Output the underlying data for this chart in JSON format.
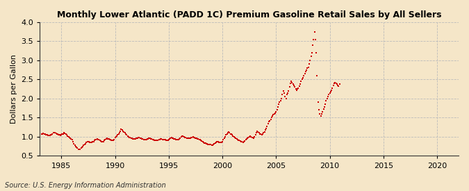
{
  "title": "Monthly Lower Atlantic (PADD 1C) Premium Gasoline Retail Sales by All Sellers",
  "ylabel": "Dollars per Gallon",
  "source": "Source: U.S. Energy Information Administration",
  "bg_color": "#f5e6c8",
  "dot_color": "#cc0000",
  "marker": "s",
  "dot_size": 3,
  "xlim": [
    1983.0,
    2022.0
  ],
  "ylim": [
    0.5,
    4.0
  ],
  "yticks": [
    0.5,
    1.0,
    1.5,
    2.0,
    2.5,
    3.0,
    3.5,
    4.0
  ],
  "xticks": [
    1985,
    1990,
    1995,
    2000,
    2005,
    2010,
    2015,
    2020
  ],
  "data": [
    [
      1983.17,
      1.07
    ],
    [
      1983.25,
      1.08
    ],
    [
      1983.33,
      1.09
    ],
    [
      1983.42,
      1.08
    ],
    [
      1983.5,
      1.07
    ],
    [
      1983.58,
      1.06
    ],
    [
      1983.67,
      1.05
    ],
    [
      1983.75,
      1.04
    ],
    [
      1983.83,
      1.04
    ],
    [
      1983.92,
      1.04
    ],
    [
      1984.0,
      1.05
    ],
    [
      1984.08,
      1.06
    ],
    [
      1984.17,
      1.08
    ],
    [
      1984.25,
      1.1
    ],
    [
      1984.33,
      1.11
    ],
    [
      1984.42,
      1.1
    ],
    [
      1984.5,
      1.09
    ],
    [
      1984.58,
      1.08
    ],
    [
      1984.67,
      1.07
    ],
    [
      1984.75,
      1.06
    ],
    [
      1984.83,
      1.05
    ],
    [
      1984.92,
      1.04
    ],
    [
      1985.0,
      1.05
    ],
    [
      1985.08,
      1.07
    ],
    [
      1985.17,
      1.08
    ],
    [
      1985.25,
      1.1
    ],
    [
      1985.33,
      1.09
    ],
    [
      1985.42,
      1.07
    ],
    [
      1985.5,
      1.05
    ],
    [
      1985.58,
      1.02
    ],
    [
      1985.67,
      1.0
    ],
    [
      1985.75,
      0.98
    ],
    [
      1985.83,
      0.96
    ],
    [
      1985.92,
      0.94
    ],
    [
      1986.0,
      0.92
    ],
    [
      1986.08,
      0.88
    ],
    [
      1986.17,
      0.82
    ],
    [
      1986.25,
      0.78
    ],
    [
      1986.33,
      0.74
    ],
    [
      1986.42,
      0.72
    ],
    [
      1986.5,
      0.7
    ],
    [
      1986.58,
      0.68
    ],
    [
      1986.67,
      0.67
    ],
    [
      1986.75,
      0.68
    ],
    [
      1986.83,
      0.7
    ],
    [
      1986.92,
      0.72
    ],
    [
      1987.0,
      0.75
    ],
    [
      1987.08,
      0.78
    ],
    [
      1987.17,
      0.8
    ],
    [
      1987.25,
      0.82
    ],
    [
      1987.33,
      0.85
    ],
    [
      1987.42,
      0.87
    ],
    [
      1987.5,
      0.88
    ],
    [
      1987.58,
      0.87
    ],
    [
      1987.67,
      0.86
    ],
    [
      1987.75,
      0.85
    ],
    [
      1987.83,
      0.86
    ],
    [
      1987.92,
      0.87
    ],
    [
      1988.0,
      0.88
    ],
    [
      1988.08,
      0.9
    ],
    [
      1988.17,
      0.92
    ],
    [
      1988.25,
      0.93
    ],
    [
      1988.33,
      0.94
    ],
    [
      1988.42,
      0.93
    ],
    [
      1988.5,
      0.92
    ],
    [
      1988.58,
      0.9
    ],
    [
      1988.67,
      0.89
    ],
    [
      1988.75,
      0.88
    ],
    [
      1988.83,
      0.88
    ],
    [
      1988.92,
      0.88
    ],
    [
      1989.0,
      0.9
    ],
    [
      1989.08,
      0.92
    ],
    [
      1989.17,
      0.94
    ],
    [
      1989.25,
      0.96
    ],
    [
      1989.33,
      0.95
    ],
    [
      1989.42,
      0.94
    ],
    [
      1989.5,
      0.93
    ],
    [
      1989.58,
      0.92
    ],
    [
      1989.67,
      0.91
    ],
    [
      1989.75,
      0.9
    ],
    [
      1989.83,
      0.91
    ],
    [
      1989.92,
      0.93
    ],
    [
      1990.0,
      0.98
    ],
    [
      1990.08,
      1.0
    ],
    [
      1990.17,
      1.02
    ],
    [
      1990.25,
      1.05
    ],
    [
      1990.33,
      1.08
    ],
    [
      1990.42,
      1.1
    ],
    [
      1990.5,
      1.15
    ],
    [
      1990.58,
      1.2
    ],
    [
      1990.67,
      1.18
    ],
    [
      1990.75,
      1.15
    ],
    [
      1990.83,
      1.13
    ],
    [
      1990.92,
      1.1
    ],
    [
      1991.0,
      1.08
    ],
    [
      1991.08,
      1.05
    ],
    [
      1991.17,
      1.02
    ],
    [
      1991.25,
      1.0
    ],
    [
      1991.33,
      0.99
    ],
    [
      1991.42,
      0.98
    ],
    [
      1991.5,
      0.97
    ],
    [
      1991.58,
      0.96
    ],
    [
      1991.67,
      0.95
    ],
    [
      1991.75,
      0.94
    ],
    [
      1991.83,
      0.94
    ],
    [
      1991.92,
      0.95
    ],
    [
      1992.0,
      0.96
    ],
    [
      1992.08,
      0.97
    ],
    [
      1992.17,
      0.98
    ],
    [
      1992.25,
      0.98
    ],
    [
      1992.33,
      0.97
    ],
    [
      1992.42,
      0.96
    ],
    [
      1992.5,
      0.95
    ],
    [
      1992.58,
      0.94
    ],
    [
      1992.67,
      0.93
    ],
    [
      1992.75,
      0.93
    ],
    [
      1992.83,
      0.93
    ],
    [
      1992.92,
      0.93
    ],
    [
      1993.0,
      0.94
    ],
    [
      1993.08,
      0.95
    ],
    [
      1993.17,
      0.96
    ],
    [
      1993.25,
      0.96
    ],
    [
      1993.33,
      0.95
    ],
    [
      1993.42,
      0.94
    ],
    [
      1993.5,
      0.93
    ],
    [
      1993.58,
      0.92
    ],
    [
      1993.67,
      0.91
    ],
    [
      1993.75,
      0.9
    ],
    [
      1993.83,
      0.9
    ],
    [
      1993.92,
      0.9
    ],
    [
      1994.0,
      0.91
    ],
    [
      1994.08,
      0.92
    ],
    [
      1994.17,
      0.93
    ],
    [
      1994.25,
      0.94
    ],
    [
      1994.33,
      0.94
    ],
    [
      1994.42,
      0.93
    ],
    [
      1994.5,
      0.93
    ],
    [
      1994.58,
      0.93
    ],
    [
      1994.67,
      0.92
    ],
    [
      1994.75,
      0.91
    ],
    [
      1994.83,
      0.91
    ],
    [
      1994.92,
      0.91
    ],
    [
      1995.0,
      0.93
    ],
    [
      1995.08,
      0.95
    ],
    [
      1995.17,
      0.97
    ],
    [
      1995.25,
      0.98
    ],
    [
      1995.33,
      0.97
    ],
    [
      1995.42,
      0.96
    ],
    [
      1995.5,
      0.95
    ],
    [
      1995.58,
      0.94
    ],
    [
      1995.67,
      0.93
    ],
    [
      1995.75,
      0.92
    ],
    [
      1995.83,
      0.92
    ],
    [
      1995.92,
      0.92
    ],
    [
      1996.0,
      0.94
    ],
    [
      1996.08,
      0.97
    ],
    [
      1996.17,
      1.0
    ],
    [
      1996.25,
      1.02
    ],
    [
      1996.33,
      1.01
    ],
    [
      1996.42,
      1.0
    ],
    [
      1996.5,
      0.99
    ],
    [
      1996.58,
      0.98
    ],
    [
      1996.67,
      0.97
    ],
    [
      1996.75,
      0.96
    ],
    [
      1996.83,
      0.96
    ],
    [
      1996.92,
      0.96
    ],
    [
      1997.0,
      0.97
    ],
    [
      1997.08,
      0.98
    ],
    [
      1997.17,
      0.99
    ],
    [
      1997.25,
      1.0
    ],
    [
      1997.33,
      0.99
    ],
    [
      1997.42,
      0.98
    ],
    [
      1997.5,
      0.97
    ],
    [
      1997.58,
      0.96
    ],
    [
      1997.67,
      0.95
    ],
    [
      1997.75,
      0.94
    ],
    [
      1997.83,
      0.93
    ],
    [
      1997.92,
      0.92
    ],
    [
      1998.0,
      0.91
    ],
    [
      1998.08,
      0.89
    ],
    [
      1998.17,
      0.87
    ],
    [
      1998.25,
      0.85
    ],
    [
      1998.33,
      0.84
    ],
    [
      1998.42,
      0.83
    ],
    [
      1998.5,
      0.82
    ],
    [
      1998.58,
      0.81
    ],
    [
      1998.67,
      0.8
    ],
    [
      1998.75,
      0.8
    ],
    [
      1998.83,
      0.8
    ],
    [
      1998.92,
      0.8
    ],
    [
      1999.0,
      0.79
    ],
    [
      1999.08,
      0.79
    ],
    [
      1999.17,
      0.8
    ],
    [
      1999.25,
      0.82
    ],
    [
      1999.33,
      0.84
    ],
    [
      1999.42,
      0.86
    ],
    [
      1999.5,
      0.87
    ],
    [
      1999.58,
      0.87
    ],
    [
      1999.67,
      0.86
    ],
    [
      1999.75,
      0.85
    ],
    [
      1999.83,
      0.85
    ],
    [
      1999.92,
      0.86
    ],
    [
      2000.0,
      0.88
    ],
    [
      2000.08,
      0.92
    ],
    [
      2000.17,
      0.97
    ],
    [
      2000.25,
      1.0
    ],
    [
      2000.33,
      1.05
    ],
    [
      2000.42,
      1.08
    ],
    [
      2000.5,
      1.1
    ],
    [
      2000.58,
      1.12
    ],
    [
      2000.67,
      1.1
    ],
    [
      2000.75,
      1.08
    ],
    [
      2000.83,
      1.07
    ],
    [
      2000.92,
      1.05
    ],
    [
      2001.0,
      1.02
    ],
    [
      2001.08,
      1.0
    ],
    [
      2001.17,
      0.98
    ],
    [
      2001.25,
      0.96
    ],
    [
      2001.33,
      0.95
    ],
    [
      2001.42,
      0.93
    ],
    [
      2001.5,
      0.91
    ],
    [
      2001.58,
      0.9
    ],
    [
      2001.67,
      0.89
    ],
    [
      2001.75,
      0.88
    ],
    [
      2001.83,
      0.87
    ],
    [
      2001.92,
      0.86
    ],
    [
      2002.0,
      0.87
    ],
    [
      2002.08,
      0.89
    ],
    [
      2002.17,
      0.92
    ],
    [
      2002.25,
      0.95
    ],
    [
      2002.33,
      0.97
    ],
    [
      2002.42,
      0.99
    ],
    [
      2002.5,
      1.0
    ],
    [
      2002.58,
      1.01
    ],
    [
      2002.67,
      1.0
    ],
    [
      2002.75,
      0.99
    ],
    [
      2002.83,
      0.98
    ],
    [
      2002.92,
      0.97
    ],
    [
      2003.0,
      1.0
    ],
    [
      2003.08,
      1.05
    ],
    [
      2003.17,
      1.1
    ],
    [
      2003.25,
      1.15
    ],
    [
      2003.33,
      1.12
    ],
    [
      2003.42,
      1.1
    ],
    [
      2003.5,
      1.08
    ],
    [
      2003.58,
      1.07
    ],
    [
      2003.67,
      1.06
    ],
    [
      2003.75,
      1.08
    ],
    [
      2003.83,
      1.1
    ],
    [
      2003.92,
      1.12
    ],
    [
      2004.0,
      1.18
    ],
    [
      2004.08,
      1.22
    ],
    [
      2004.17,
      1.28
    ],
    [
      2004.25,
      1.35
    ],
    [
      2004.33,
      1.4
    ],
    [
      2004.42,
      1.42
    ],
    [
      2004.5,
      1.45
    ],
    [
      2004.58,
      1.5
    ],
    [
      2004.67,
      1.55
    ],
    [
      2004.75,
      1.58
    ],
    [
      2004.83,
      1.6
    ],
    [
      2004.92,
      1.62
    ],
    [
      2005.0,
      1.65
    ],
    [
      2005.08,
      1.7
    ],
    [
      2005.17,
      1.78
    ],
    [
      2005.25,
      1.85
    ],
    [
      2005.33,
      1.9
    ],
    [
      2005.42,
      1.95
    ],
    [
      2005.5,
      2.0
    ],
    [
      2005.58,
      2.1
    ],
    [
      2005.67,
      2.2
    ],
    [
      2005.75,
      2.15
    ],
    [
      2005.83,
      2.05
    ],
    [
      2005.92,
      2.0
    ],
    [
      2006.0,
      2.1
    ],
    [
      2006.08,
      2.15
    ],
    [
      2006.17,
      2.2
    ],
    [
      2006.25,
      2.3
    ],
    [
      2006.33,
      2.4
    ],
    [
      2006.42,
      2.45
    ],
    [
      2006.5,
      2.42
    ],
    [
      2006.58,
      2.38
    ],
    [
      2006.67,
      2.35
    ],
    [
      2006.75,
      2.3
    ],
    [
      2006.83,
      2.25
    ],
    [
      2006.92,
      2.22
    ],
    [
      2007.0,
      2.25
    ],
    [
      2007.08,
      2.28
    ],
    [
      2007.17,
      2.32
    ],
    [
      2007.25,
      2.38
    ],
    [
      2007.33,
      2.45
    ],
    [
      2007.42,
      2.5
    ],
    [
      2007.5,
      2.55
    ],
    [
      2007.58,
      2.6
    ],
    [
      2007.67,
      2.65
    ],
    [
      2007.75,
      2.7
    ],
    [
      2007.83,
      2.75
    ],
    [
      2007.92,
      2.8
    ],
    [
      2008.0,
      2.82
    ],
    [
      2008.08,
      2.9
    ],
    [
      2008.17,
      3.0
    ],
    [
      2008.25,
      3.1
    ],
    [
      2008.33,
      3.2
    ],
    [
      2008.42,
      3.4
    ],
    [
      2008.5,
      3.55
    ],
    [
      2008.58,
      3.75
    ],
    [
      2008.67,
      3.55
    ],
    [
      2008.75,
      3.2
    ],
    [
      2008.83,
      2.6
    ],
    [
      2008.92,
      1.9
    ],
    [
      2009.0,
      1.7
    ],
    [
      2009.08,
      1.6
    ],
    [
      2009.17,
      1.55
    ],
    [
      2009.25,
      1.6
    ],
    [
      2009.33,
      1.65
    ],
    [
      2009.42,
      1.72
    ],
    [
      2009.5,
      1.78
    ],
    [
      2009.58,
      1.85
    ],
    [
      2009.67,
      1.95
    ],
    [
      2009.75,
      2.0
    ],
    [
      2009.83,
      2.05
    ],
    [
      2009.92,
      2.1
    ],
    [
      2010.0,
      2.15
    ],
    [
      2010.08,
      2.18
    ],
    [
      2010.17,
      2.22
    ],
    [
      2010.25,
      2.28
    ],
    [
      2010.33,
      2.35
    ],
    [
      2010.42,
      2.4
    ],
    [
      2010.5,
      2.42
    ],
    [
      2010.58,
      2.4
    ],
    [
      2010.67,
      2.38
    ],
    [
      2010.75,
      2.35
    ],
    [
      2010.83,
      2.32
    ],
    [
      2010.92,
      2.38
    ]
  ]
}
